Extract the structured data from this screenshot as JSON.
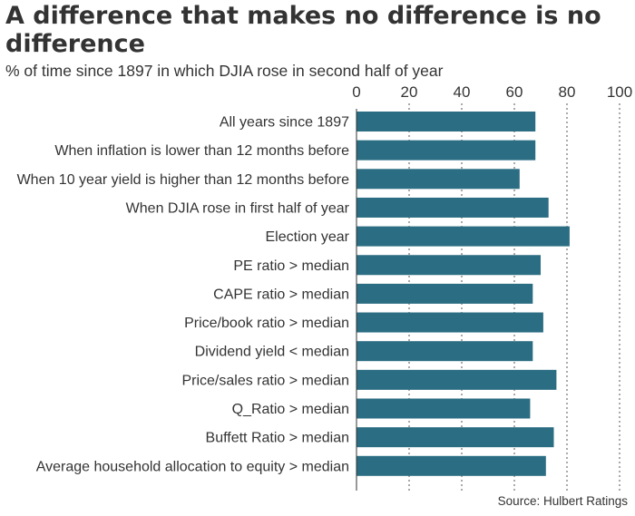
{
  "header": {
    "title": "A difference that makes no difference is no difference",
    "subtitle": "% of time since 1897 in which DJIA rose in second half of year"
  },
  "footer": {
    "source": "Source: Hulbert Ratings"
  },
  "colors": {
    "bar": "#2b6d82",
    "text": "#333333",
    "grid": "#555555"
  },
  "chart_data": {
    "type": "bar",
    "orientation": "horizontal",
    "title": "A difference that makes no difference is no difference",
    "subtitle": "% of time since 1897 in which DJIA rose in second half of year",
    "xlim": [
      0,
      100
    ],
    "ticks": [
      0,
      20,
      40,
      60,
      80,
      100
    ],
    "tick_labels": [
      "0",
      "20",
      "40",
      "60",
      "80",
      "100"
    ],
    "axis_position": "top",
    "grid": "vertical dashed",
    "categories": [
      "All years since 1897",
      "When inflation is lower than 12 months before",
      "When 10 year yield is higher than 12 months before",
      "When DJIA rose in first half of year",
      "Election year",
      "PE ratio > median",
      "CAPE ratio > median",
      "Price/book ratio > median",
      "Dividend yield < median",
      "Price/sales ratio > median",
      "Q_Ratio > median",
      "Buffett Ratio > median",
      "Average household allocation to equity > median"
    ],
    "values": [
      68,
      68,
      62,
      73,
      81,
      70,
      67,
      71,
      67,
      76,
      66,
      75,
      72
    ],
    "source": "Source: Hulbert Ratings"
  }
}
